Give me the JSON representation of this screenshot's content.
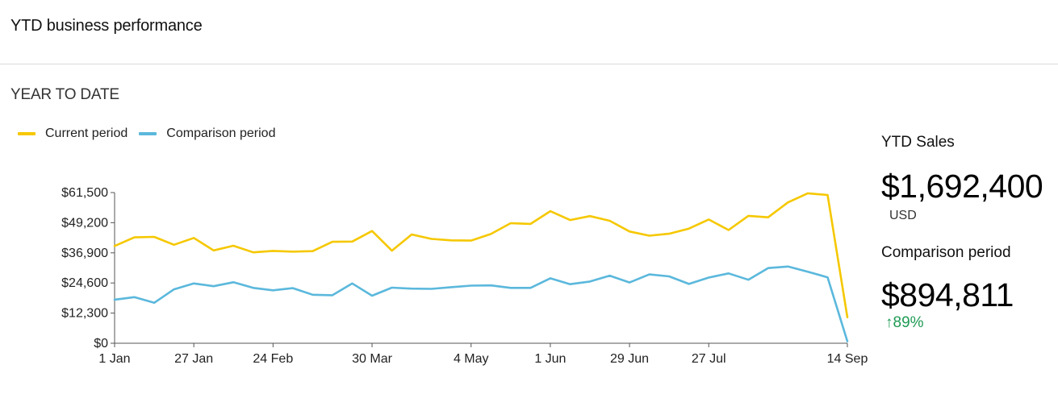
{
  "header": {
    "title": "YTD business performance"
  },
  "section": {
    "label": "YEAR TO DATE"
  },
  "legend": [
    {
      "label": "Current period",
      "color": "#f5c800"
    },
    {
      "label": "Comparison period",
      "color": "#5bb8dc"
    }
  ],
  "stats": {
    "ytd_label": "YTD Sales",
    "ytd_value": "$1,692,400",
    "ytd_unit": "USD",
    "comparison_label": "Comparison period",
    "comparison_value": "$894,811",
    "change_arrow": "↑",
    "change_text": "89%",
    "change_color": "#1f9a54"
  },
  "chart_data": {
    "type": "line",
    "ylim": [
      0,
      61500
    ],
    "y_ticks": [
      0,
      12300,
      24600,
      36900,
      49200,
      61500
    ],
    "y_tick_labels": [
      "$0",
      "$12,300",
      "$24,600",
      "$36,900",
      "$49,200",
      "$61,500"
    ],
    "x_ticks": [
      {
        "index": 0,
        "label": "1 Jan"
      },
      {
        "index": 4,
        "label": "27 Jan"
      },
      {
        "index": 8,
        "label": "24 Feb"
      },
      {
        "index": 13,
        "label": "30 Mar"
      },
      {
        "index": 18,
        "label": "4 May"
      },
      {
        "index": 22,
        "label": "1 Jun"
      },
      {
        "index": 26,
        "label": "29 Jun"
      },
      {
        "index": 30,
        "label": "27 Jul"
      },
      {
        "index": 37,
        "label": "14 Sep"
      }
    ],
    "grid": false,
    "legend_position": "top-left",
    "series": [
      {
        "name": "Current period",
        "color": "#f5c800",
        "values": [
          39700,
          43200,
          43400,
          40200,
          43000,
          37900,
          39800,
          37100,
          37700,
          37400,
          37600,
          41400,
          41500,
          45800,
          37800,
          44400,
          42600,
          42000,
          41900,
          44600,
          49000,
          48700,
          53900,
          50300,
          51900,
          50000,
          45600,
          43900,
          44700,
          46800,
          50500,
          46200,
          52000,
          51400,
          57500,
          61200,
          60500,
          10600
        ]
      },
      {
        "name": "Comparison period",
        "color": "#5bb8dc",
        "values": [
          17800,
          18800,
          16500,
          22000,
          24400,
          23300,
          24900,
          22600,
          21600,
          22500,
          19800,
          19600,
          24400,
          19400,
          22700,
          22300,
          22200,
          22900,
          23500,
          23600,
          22600,
          22600,
          26500,
          24100,
          25200,
          27600,
          24800,
          28100,
          27300,
          24200,
          26800,
          28500,
          25900,
          30700,
          31300,
          29200,
          26900,
          800
        ]
      }
    ]
  }
}
